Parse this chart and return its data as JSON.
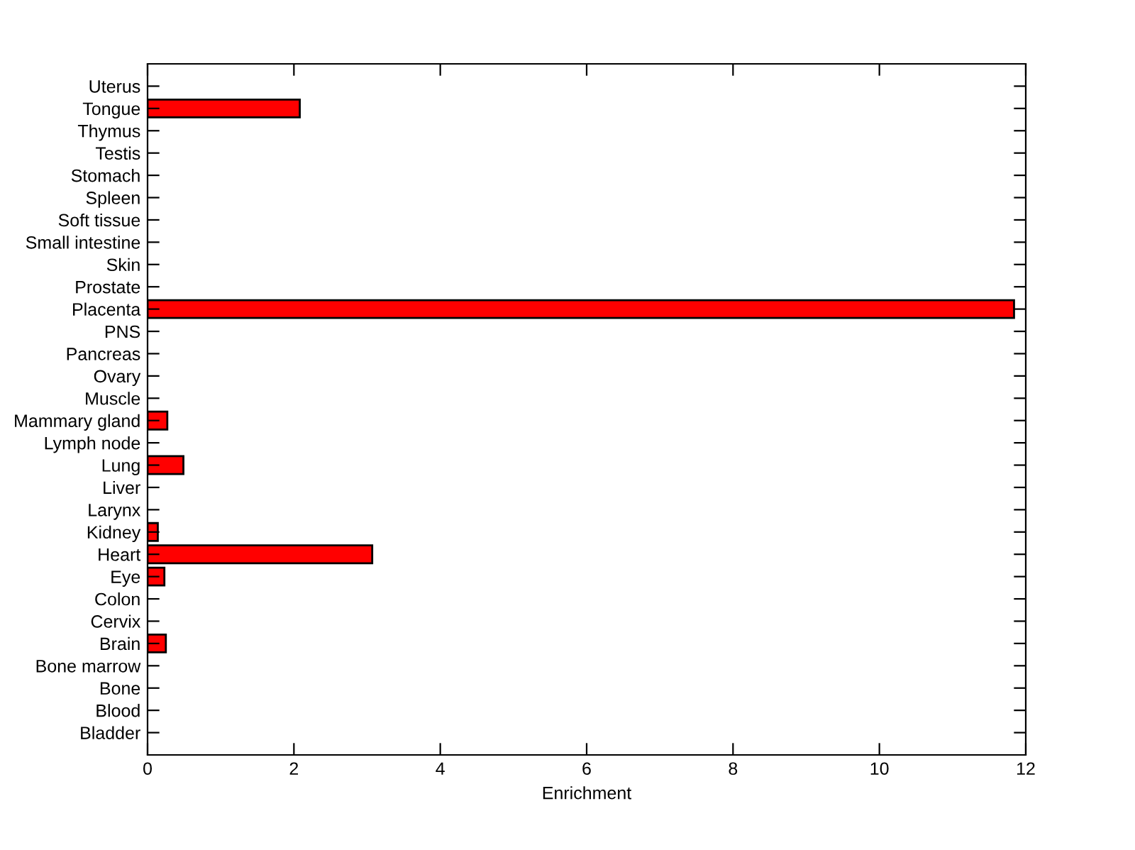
{
  "chart_data": {
    "type": "bar",
    "orientation": "horizontal",
    "xlabel": "Enrichment",
    "categories": [
      "Uterus",
      "Tongue",
      "Thymus",
      "Testis",
      "Stomach",
      "Spleen",
      "Soft tissue",
      "Small intestine",
      "Skin",
      "Prostate",
      "Placenta",
      "PNS",
      "Pancreas",
      "Ovary",
      "Muscle",
      "Mammary gland",
      "Lymph node",
      "Lung",
      "Liver",
      "Larynx",
      "Kidney",
      "Heart",
      "Eye",
      "Colon",
      "Cervix",
      "Brain",
      "Bone marrow",
      "Bone",
      "Blood",
      "Bladder"
    ],
    "values": [
      0,
      2.08,
      0,
      0,
      0,
      0,
      0,
      0,
      0,
      0,
      11.84,
      0,
      0,
      0,
      0,
      0.27,
      0,
      0.49,
      0,
      0,
      0.14,
      3.07,
      0.23,
      0,
      0,
      0.25,
      0,
      0,
      0,
      0
    ],
    "color": "#ff0000",
    "xlim": [
      0,
      12
    ],
    "xticks": [
      0,
      2,
      4,
      6,
      8,
      10,
      12
    ],
    "grid": false,
    "legend": false
  }
}
